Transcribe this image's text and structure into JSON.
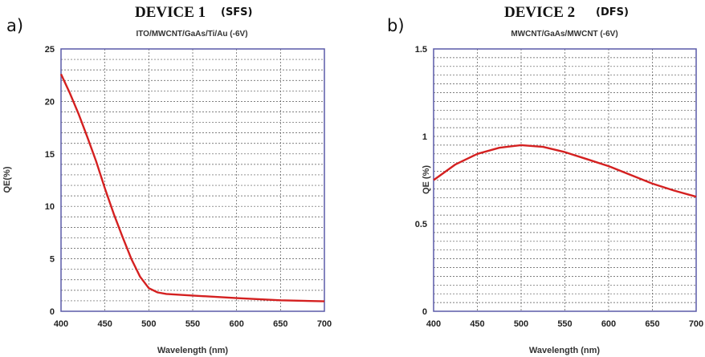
{
  "chart_data": [
    {
      "type": "line",
      "panel_label": "a)",
      "title": "DEVICE 1",
      "title_tag": "(SFS)",
      "subtitle": "ITO/MWCNT/GaAs/Ti/Au (-6V)",
      "xlabel": "Wavelength (nm)",
      "ylabel": "QE(%)",
      "xlim": [
        400,
        700
      ],
      "ylim": [
        0,
        25
      ],
      "xticks": [
        "400",
        "450",
        "500",
        "550",
        "600",
        "650",
        "700"
      ],
      "yticks": [
        "0",
        "5",
        "10",
        "15",
        "20",
        "25"
      ],
      "grid": true,
      "minor_y_step": 1,
      "line_color": "#d42020",
      "x": [
        400,
        410,
        420,
        430,
        440,
        450,
        460,
        470,
        480,
        490,
        500,
        510,
        520,
        550,
        600,
        650,
        700
      ],
      "y": [
        22.6,
        20.8,
        18.8,
        16.6,
        14.3,
        11.7,
        9.3,
        7.1,
        5.0,
        3.3,
        2.2,
        1.8,
        1.65,
        1.5,
        1.25,
        1.05,
        0.95
      ]
    },
    {
      "type": "line",
      "panel_label": "b)",
      "title": "DEVICE 2",
      "title_tag": "(DFS)",
      "subtitle": "MWCNT/GaAs/MWCNT (-6V)",
      "xlabel": "Wavelength (nm)",
      "ylabel": "QE (%)",
      "xlim": [
        400,
        700
      ],
      "ylim": [
        0,
        1.5
      ],
      "xticks": [
        "400",
        "450",
        "500",
        "550",
        "600",
        "650",
        "700"
      ],
      "yticks": [
        "0",
        "0.5",
        "1",
        "1.5"
      ],
      "grid": true,
      "minor_y_step": 0.05,
      "line_color": "#d42020",
      "x": [
        400,
        425,
        450,
        475,
        500,
        525,
        550,
        575,
        600,
        625,
        650,
        675,
        700
      ],
      "y": [
        0.75,
        0.84,
        0.9,
        0.935,
        0.95,
        0.94,
        0.91,
        0.87,
        0.83,
        0.78,
        0.73,
        0.69,
        0.655
      ]
    }
  ]
}
